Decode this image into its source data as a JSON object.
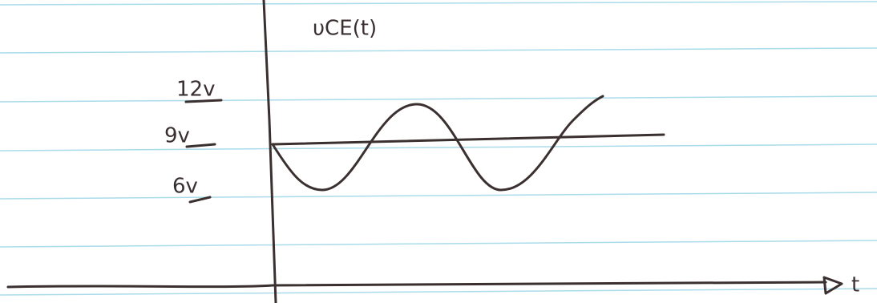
{
  "title": "υCE(t)",
  "y_labels": [
    "12v",
    "9v",
    "6v"
  ],
  "x_label": "t"
}
